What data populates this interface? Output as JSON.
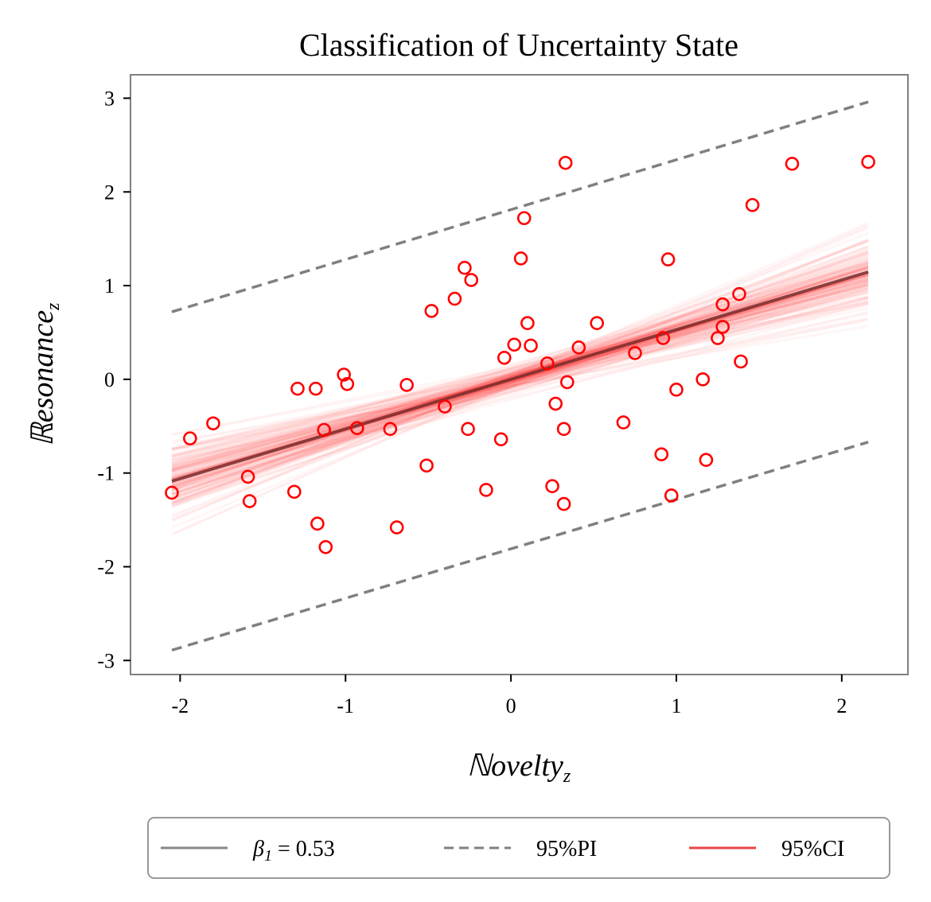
{
  "chart_data": {
    "type": "scatter",
    "title": "Classification of Uncertainty State",
    "xlabel": "ℕovelty",
    "xlabel_sub": "z",
    "ylabel": "ℝesonance",
    "ylabel_sub": "z",
    "xlim": [
      -2.3,
      2.4
    ],
    "ylim": [
      -3.15,
      3.25
    ],
    "xticks": [
      -2,
      -1,
      0,
      1,
      2
    ],
    "xtick_labels": [
      "-2",
      "-1",
      "0",
      "1",
      "2"
    ],
    "yticks": [
      -3,
      -2,
      -1,
      0,
      1,
      2,
      3
    ],
    "ytick_labels": [
      "-3",
      "-2",
      "-1",
      "0",
      "1",
      "2",
      "3"
    ],
    "grid": false,
    "points": {
      "x": [
        -2.05,
        -1.94,
        -1.8,
        -1.59,
        -1.58,
        -1.31,
        -1.29,
        -1.18,
        -1.17,
        -1.13,
        -1.12,
        -1.01,
        -0.99,
        -0.93,
        -0.73,
        -0.69,
        -0.63,
        -0.51,
        -0.48,
        -0.4,
        -0.34,
        -0.28,
        -0.26,
        -0.24,
        -0.15,
        -0.06,
        -0.04,
        0.02,
        0.06,
        0.08,
        0.1,
        0.12,
        0.22,
        0.25,
        0.27,
        0.32,
        0.32,
        0.33,
        0.34,
        0.41,
        0.52,
        0.68,
        0.75,
        0.91,
        0.92,
        0.95,
        0.97,
        1.0,
        1.16,
        1.18,
        1.25,
        1.28,
        1.28,
        1.38,
        1.39,
        1.46,
        1.7,
        2.16
      ],
      "y": [
        -1.21,
        -0.63,
        -0.47,
        -1.04,
        -1.3,
        -1.2,
        -0.1,
        -0.1,
        -1.54,
        -0.54,
        -1.79,
        0.05,
        -0.05,
        -0.52,
        -0.53,
        -1.58,
        -0.06,
        -0.92,
        0.73,
        -0.29,
        0.86,
        1.19,
        -0.53,
        1.06,
        -1.18,
        -0.64,
        0.23,
        0.37,
        1.29,
        1.72,
        0.6,
        0.36,
        0.17,
        -1.14,
        -0.26,
        -1.33,
        -0.53,
        2.31,
        -0.03,
        0.34,
        0.6,
        -0.46,
        0.28,
        -0.8,
        0.44,
        1.28,
        -1.24,
        -0.11,
        0.0,
        -0.86,
        0.44,
        0.8,
        0.56,
        0.91,
        0.19,
        1.86,
        2.3,
        2.32
      ],
      "color": "#ff0000"
    },
    "fit_line": {
      "x_range": [
        -2.05,
        2.16
      ],
      "intercept": 0.0,
      "slope": 0.53,
      "color": "#7a2a2a"
    },
    "prediction_interval": {
      "lower": [
        [
          -2.05,
          -2.89
        ],
        [
          2.16,
          -0.67
        ]
      ],
      "upper": [
        [
          -2.05,
          0.72
        ],
        [
          2.16,
          2.96
        ]
      ],
      "color": "#808080"
    },
    "confidence_band": {
      "samples": 160,
      "slope_sd": 0.09,
      "intercept_sd": 0.07,
      "color": "#ff0000"
    },
    "legend": [
      {
        "label": "β",
        "label_sub": "1",
        "label_rest": " = 0.53",
        "style": "solid",
        "color": "#888888"
      },
      {
        "label": "95%PI",
        "style": "dashed",
        "color": "#808080"
      },
      {
        "label": "95%CI",
        "style": "solid",
        "color": "#e84545"
      }
    ],
    "legend_position": "bottom-center"
  }
}
